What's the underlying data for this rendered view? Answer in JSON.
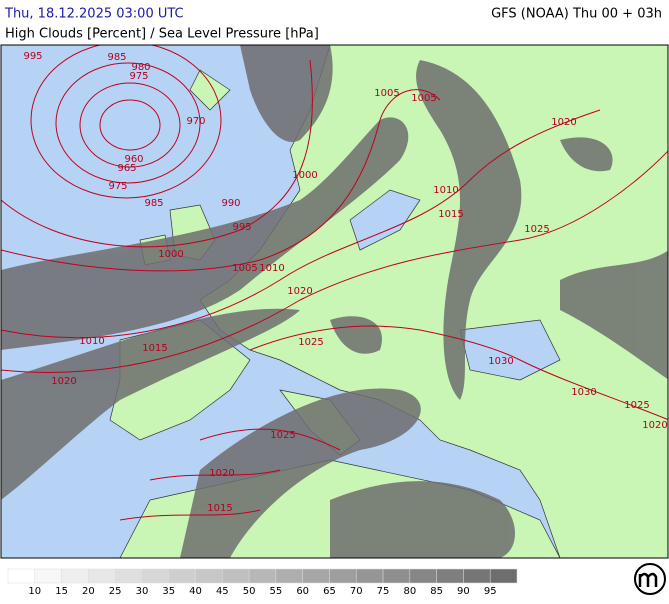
{
  "header": {
    "title": "Thu, 18.12.2025 03:00 UTC",
    "model": "GFS (NOAA) Thu 00 + 03h",
    "subtitle": "High Clouds [Percent] / Sea Level Pressure [hPa]"
  },
  "isobar_labels": [
    995,
    985,
    980,
    975,
    970,
    960,
    965,
    975,
    985,
    990,
    995,
    1000,
    1000,
    1005,
    1005,
    1020,
    1010,
    1015,
    1025,
    1005,
    1010,
    1020,
    1025,
    1010,
    1015,
    1020,
    1030,
    1030,
    1025,
    1020,
    1025,
    1020,
    1015
  ],
  "legend": {
    "levels": [
      10,
      15,
      20,
      25,
      30,
      35,
      40,
      45,
      50,
      55,
      60,
      65,
      70,
      75,
      80,
      85,
      90,
      95
    ]
  }
}
